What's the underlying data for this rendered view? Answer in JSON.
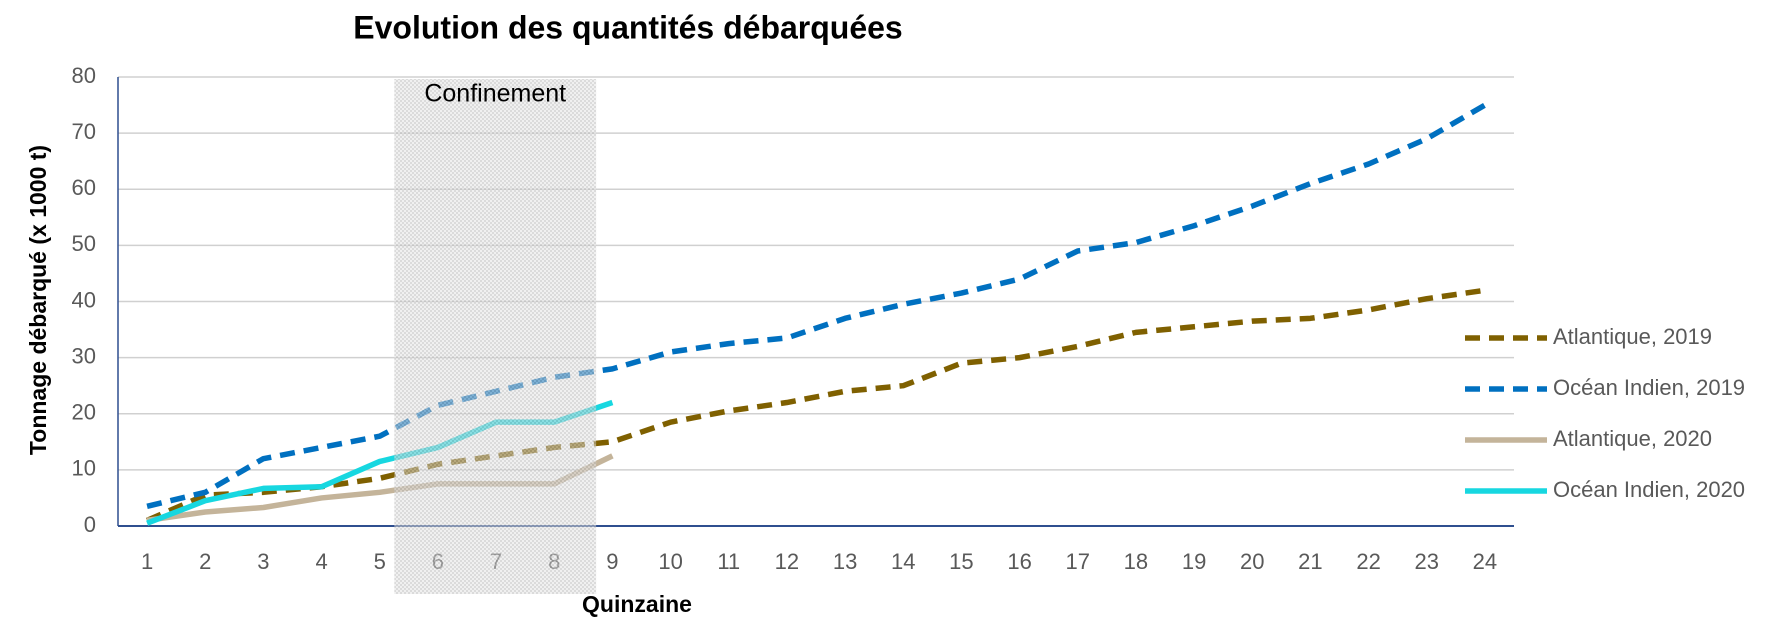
{
  "chart_data": {
    "type": "line",
    "title": "Evolution des quantités débarquées",
    "x_label": "Quinzaine",
    "y_label": "Tonnage débarqué (x 1000 t)",
    "x": [
      1,
      2,
      3,
      4,
      5,
      6,
      7,
      8,
      9,
      10,
      11,
      12,
      13,
      14,
      15,
      16,
      17,
      18,
      19,
      20,
      21,
      22,
      23,
      24
    ],
    "xlim": [
      0.5,
      24.5
    ],
    "ylim": [
      0,
      80
    ],
    "yticks": [
      0,
      10,
      20,
      30,
      40,
      50,
      60,
      70,
      80
    ],
    "grid": true,
    "legend": "right",
    "annotation": {
      "text": "Confinement",
      "x_range": [
        5.25,
        8.72
      ]
    },
    "series": [
      {
        "name": "Atlantique, 2019",
        "color": "#7f6000",
        "dashed": true,
        "values": [
          1,
          5.5,
          6,
          7,
          8.5,
          11,
          12.5,
          14,
          15,
          18.5,
          20.5,
          22,
          24,
          25,
          29,
          30,
          32,
          34.5,
          35.5,
          36.5,
          37,
          38.5,
          40.5,
          42
        ]
      },
      {
        "name": "Océan Indien, 2019",
        "color": "#0070c0",
        "dashed": true,
        "values": [
          3.5,
          6,
          12,
          14,
          16,
          21.5,
          24,
          26.5,
          28,
          31,
          32.5,
          33.5,
          37,
          39.5,
          41.5,
          44,
          49,
          50.5,
          53.5,
          57,
          61,
          64.5,
          69,
          75
        ]
      },
      {
        "name": "Atlantique, 2020",
        "color": "#c4b49a",
        "dashed": false,
        "values": [
          1,
          2.5,
          3.3,
          5,
          6,
          7.5,
          7.5,
          7.5,
          12.5,
          null,
          null,
          null,
          null,
          null,
          null,
          null,
          null,
          null,
          null,
          null,
          null,
          null,
          null,
          null
        ]
      },
      {
        "name": "Océan Indien, 2020",
        "color": "#17d7e0",
        "dashed": false,
        "values": [
          0.5,
          4.5,
          6.7,
          7,
          11.5,
          14,
          18.5,
          18.5,
          22,
          null,
          null,
          null,
          null,
          null,
          null,
          null,
          null,
          null,
          null,
          null,
          null,
          null,
          null,
          null
        ]
      }
    ]
  }
}
